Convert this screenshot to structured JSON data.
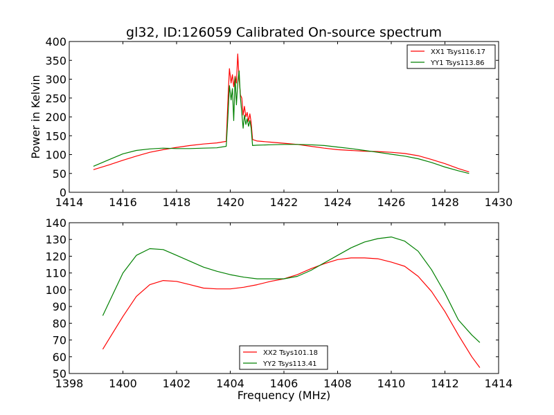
{
  "chart_data": [
    {
      "type": "line",
      "title": "gl32, ID:126059 Calibrated On-source spectrum",
      "xlabel": "",
      "ylabel": "Power in Kelvin",
      "xlim": [
        1414,
        1430
      ],
      "ylim": [
        0,
        400
      ],
      "xticks": [
        1414,
        1416,
        1418,
        1420,
        1422,
        1424,
        1426,
        1428,
        1430
      ],
      "yticks": [
        0,
        50,
        100,
        150,
        200,
        250,
        300,
        350,
        400
      ],
      "legend_position": "top-right",
      "series": [
        {
          "name": "XX1 Tsys116.17",
          "color": "#ff0000",
          "x": [
            1414.9,
            1415.5,
            1416.0,
            1416.5,
            1417.0,
            1417.5,
            1418.0,
            1418.5,
            1419.0,
            1419.5,
            1419.85,
            1419.92,
            1419.97,
            1420.03,
            1420.08,
            1420.13,
            1420.18,
            1420.23,
            1420.28,
            1420.33,
            1420.38,
            1420.43,
            1420.48,
            1420.53,
            1420.58,
            1420.63,
            1420.68,
            1420.73,
            1420.78,
            1420.83,
            1421.0,
            1421.5,
            1422.0,
            1422.5,
            1423.0,
            1423.5,
            1424.0,
            1424.5,
            1425.0,
            1425.5,
            1426.0,
            1426.5,
            1427.0,
            1427.5,
            1428.0,
            1428.5,
            1428.9
          ],
          "y": [
            60,
            73,
            85,
            96,
            106,
            113,
            119,
            124,
            128,
            131,
            135,
            255,
            328,
            290,
            312,
            280,
            308,
            290,
            367,
            300,
            258,
            250,
            205,
            228,
            200,
            212,
            188,
            208,
            185,
            140,
            136,
            133,
            130,
            127,
            122,
            117,
            113,
            111,
            109,
            108,
            106,
            103,
            97,
            87,
            76,
            63,
            54
          ]
        },
        {
          "name": "YY1 Tsys113.86",
          "color": "#008000",
          "x": [
            1414.9,
            1415.5,
            1416.0,
            1416.5,
            1417.0,
            1417.5,
            1418.0,
            1418.5,
            1419.0,
            1419.5,
            1419.85,
            1419.92,
            1419.97,
            1420.03,
            1420.08,
            1420.13,
            1420.18,
            1420.23,
            1420.28,
            1420.33,
            1420.38,
            1420.43,
            1420.48,
            1420.53,
            1420.58,
            1420.63,
            1420.68,
            1420.73,
            1420.78,
            1420.83,
            1421.0,
            1421.5,
            1422.0,
            1422.5,
            1423.0,
            1423.5,
            1424.0,
            1424.5,
            1425.0,
            1425.5,
            1426.0,
            1426.5,
            1427.0,
            1427.5,
            1428.0,
            1428.5,
            1428.9
          ],
          "y": [
            69,
            87,
            102,
            111,
            115,
            117,
            116,
            116,
            117,
            118,
            122,
            210,
            283,
            245,
            275,
            190,
            305,
            232,
            290,
            322,
            250,
            210,
            170,
            205,
            180,
            195,
            175,
            190,
            170,
            124,
            125,
            126,
            127,
            127,
            126,
            124,
            120,
            116,
            111,
            106,
            101,
            96,
            89,
            79,
            67,
            57,
            50
          ]
        }
      ]
    },
    {
      "type": "line",
      "title": "",
      "xlabel": "Frequency (MHz)",
      "ylabel": "",
      "xlim": [
        1398,
        1414
      ],
      "ylim": [
        50,
        140
      ],
      "xticks": [
        1398,
        1400,
        1402,
        1404,
        1406,
        1408,
        1410,
        1412,
        1414
      ],
      "yticks": [
        50,
        60,
        70,
        80,
        90,
        100,
        110,
        120,
        130,
        140
      ],
      "legend_position": "bottom-center",
      "series": [
        {
          "name": "XX2 Tsys101.18",
          "color": "#ff0000",
          "x": [
            1399.25,
            1399.5,
            1400.0,
            1400.5,
            1401.0,
            1401.5,
            1402.0,
            1402.5,
            1403.0,
            1403.5,
            1404.0,
            1404.5,
            1405.0,
            1405.5,
            1406.0,
            1406.5,
            1407.0,
            1407.5,
            1408.0,
            1408.5,
            1409.0,
            1409.5,
            1410.0,
            1410.5,
            1411.0,
            1411.5,
            1412.0,
            1412.5,
            1413.0,
            1413.3
          ],
          "y": [
            64.5,
            71,
            84,
            96,
            103,
            105.5,
            105,
            103,
            101,
            100.5,
            100.5,
            101.5,
            103,
            105,
            106.5,
            109,
            112.5,
            115.5,
            118,
            119,
            119,
            118.5,
            116.5,
            114,
            108,
            99,
            87,
            73,
            60,
            53.5
          ]
        },
        {
          "name": "YY2 Tsys113.41",
          "color": "#008000",
          "x": [
            1399.25,
            1399.5,
            1400.0,
            1400.5,
            1401.0,
            1401.5,
            1402.0,
            1402.5,
            1403.0,
            1403.5,
            1404.0,
            1404.5,
            1405.0,
            1405.5,
            1406.0,
            1406.5,
            1407.0,
            1407.5,
            1408.0,
            1408.5,
            1409.0,
            1409.5,
            1410.0,
            1410.5,
            1411.0,
            1411.5,
            1412.0,
            1412.5,
            1413.0,
            1413.3
          ],
          "y": [
            84.5,
            93,
            110,
            120.5,
            124.5,
            124,
            120.5,
            117,
            113.5,
            111,
            109,
            107.5,
            106.5,
            106.5,
            106.5,
            108,
            111.5,
            116,
            120.5,
            125,
            128.5,
            130.5,
            131.5,
            129,
            123,
            112,
            98,
            82,
            73,
            68.5
          ]
        }
      ]
    }
  ]
}
